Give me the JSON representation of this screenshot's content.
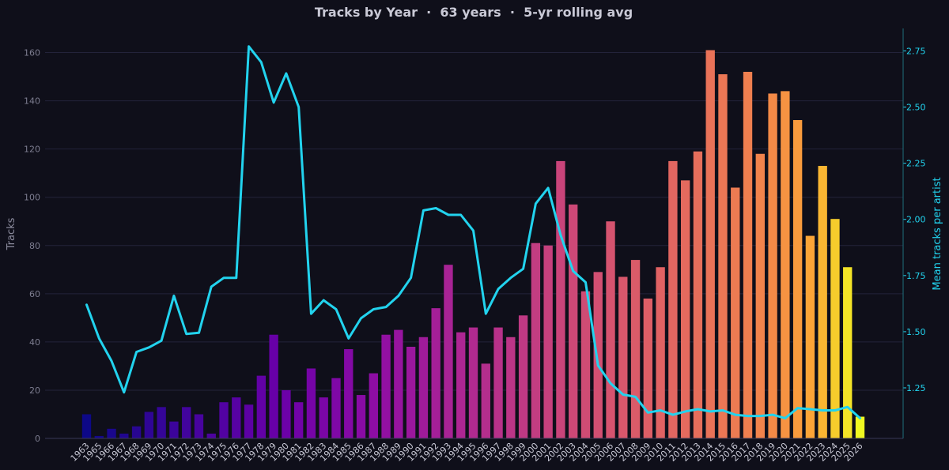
{
  "chart_data": {
    "type": "bar",
    "title": "Tracks by Year  ·  63 years  ·  5-yr rolling avg",
    "ylabel": "Tracks",
    "y2label": "Mean tracks per artist",
    "ylim": [
      0,
      170
    ],
    "y2lim": [
      1.025,
      2.85
    ],
    "grid": true,
    "yticks": [
      0,
      20,
      40,
      60,
      80,
      100,
      120,
      140,
      160
    ],
    "y2ticks": [
      "1.25",
      "1.50",
      "1.75",
      "2.00",
      "2.25",
      "2.50",
      "2.75"
    ],
    "categories": [
      "1963",
      "1965",
      "1966",
      "1967",
      "1968",
      "1969",
      "1970",
      "1971",
      "1972",
      "1973",
      "1974",
      "1975",
      "1976",
      "1977",
      "1978",
      "1979",
      "1980",
      "1981",
      "1982",
      "1983",
      "1984",
      "1985",
      "1986",
      "1987",
      "1988",
      "1989",
      "1990",
      "1991",
      "1992",
      "1993",
      "1994",
      "1995",
      "1996",
      "1997",
      "1998",
      "1999",
      "2000",
      "2001",
      "2002",
      "2003",
      "2004",
      "2005",
      "2006",
      "2007",
      "2008",
      "2009",
      "2010",
      "2011",
      "2012",
      "2013",
      "2014",
      "2015",
      "2016",
      "2017",
      "2018",
      "2019",
      "2020",
      "2021",
      "2022",
      "2023",
      "2024",
      "2025",
      "2026"
    ],
    "series": [
      {
        "type": "bar",
        "axis": "left",
        "values": [
          10,
          1,
          4,
          2,
          5,
          11,
          13,
          7,
          13,
          10,
          2,
          15,
          17,
          14,
          26,
          43,
          20,
          15,
          29,
          17,
          25,
          37,
          18,
          27,
          43,
          45,
          38,
          42,
          54,
          72,
          44,
          46,
          31,
          46,
          42,
          51,
          81,
          80,
          115,
          97,
          61,
          69,
          90,
          67,
          74,
          58,
          71,
          115,
          107,
          119,
          161,
          151,
          104,
          152,
          118,
          143,
          144,
          132,
          84,
          113,
          91,
          71,
          9
        ]
      },
      {
        "type": "line",
        "axis": "right",
        "color": "#22d3ee",
        "values": [
          1.62,
          1.47,
          1.37,
          1.23,
          1.41,
          1.43,
          1.46,
          1.66,
          1.49,
          1.495,
          1.7,
          1.74,
          1.74,
          2.77,
          2.7,
          2.52,
          2.65,
          2.5,
          1.58,
          1.64,
          1.6,
          1.47,
          1.56,
          1.6,
          1.61,
          1.66,
          1.74,
          2.04,
          2.05,
          2.02,
          2.02,
          1.95,
          1.58,
          1.69,
          1.74,
          1.78,
          2.07,
          2.14,
          1.93,
          1.77,
          1.72,
          1.35,
          1.27,
          1.22,
          1.21,
          1.14,
          1.15,
          1.13,
          1.145,
          1.155,
          1.145,
          1.15,
          1.13,
          1.125,
          1.125,
          1.13,
          1.115,
          1.16,
          1.155,
          1.15,
          1.15,
          1.165,
          1.115
        ]
      }
    ]
  }
}
